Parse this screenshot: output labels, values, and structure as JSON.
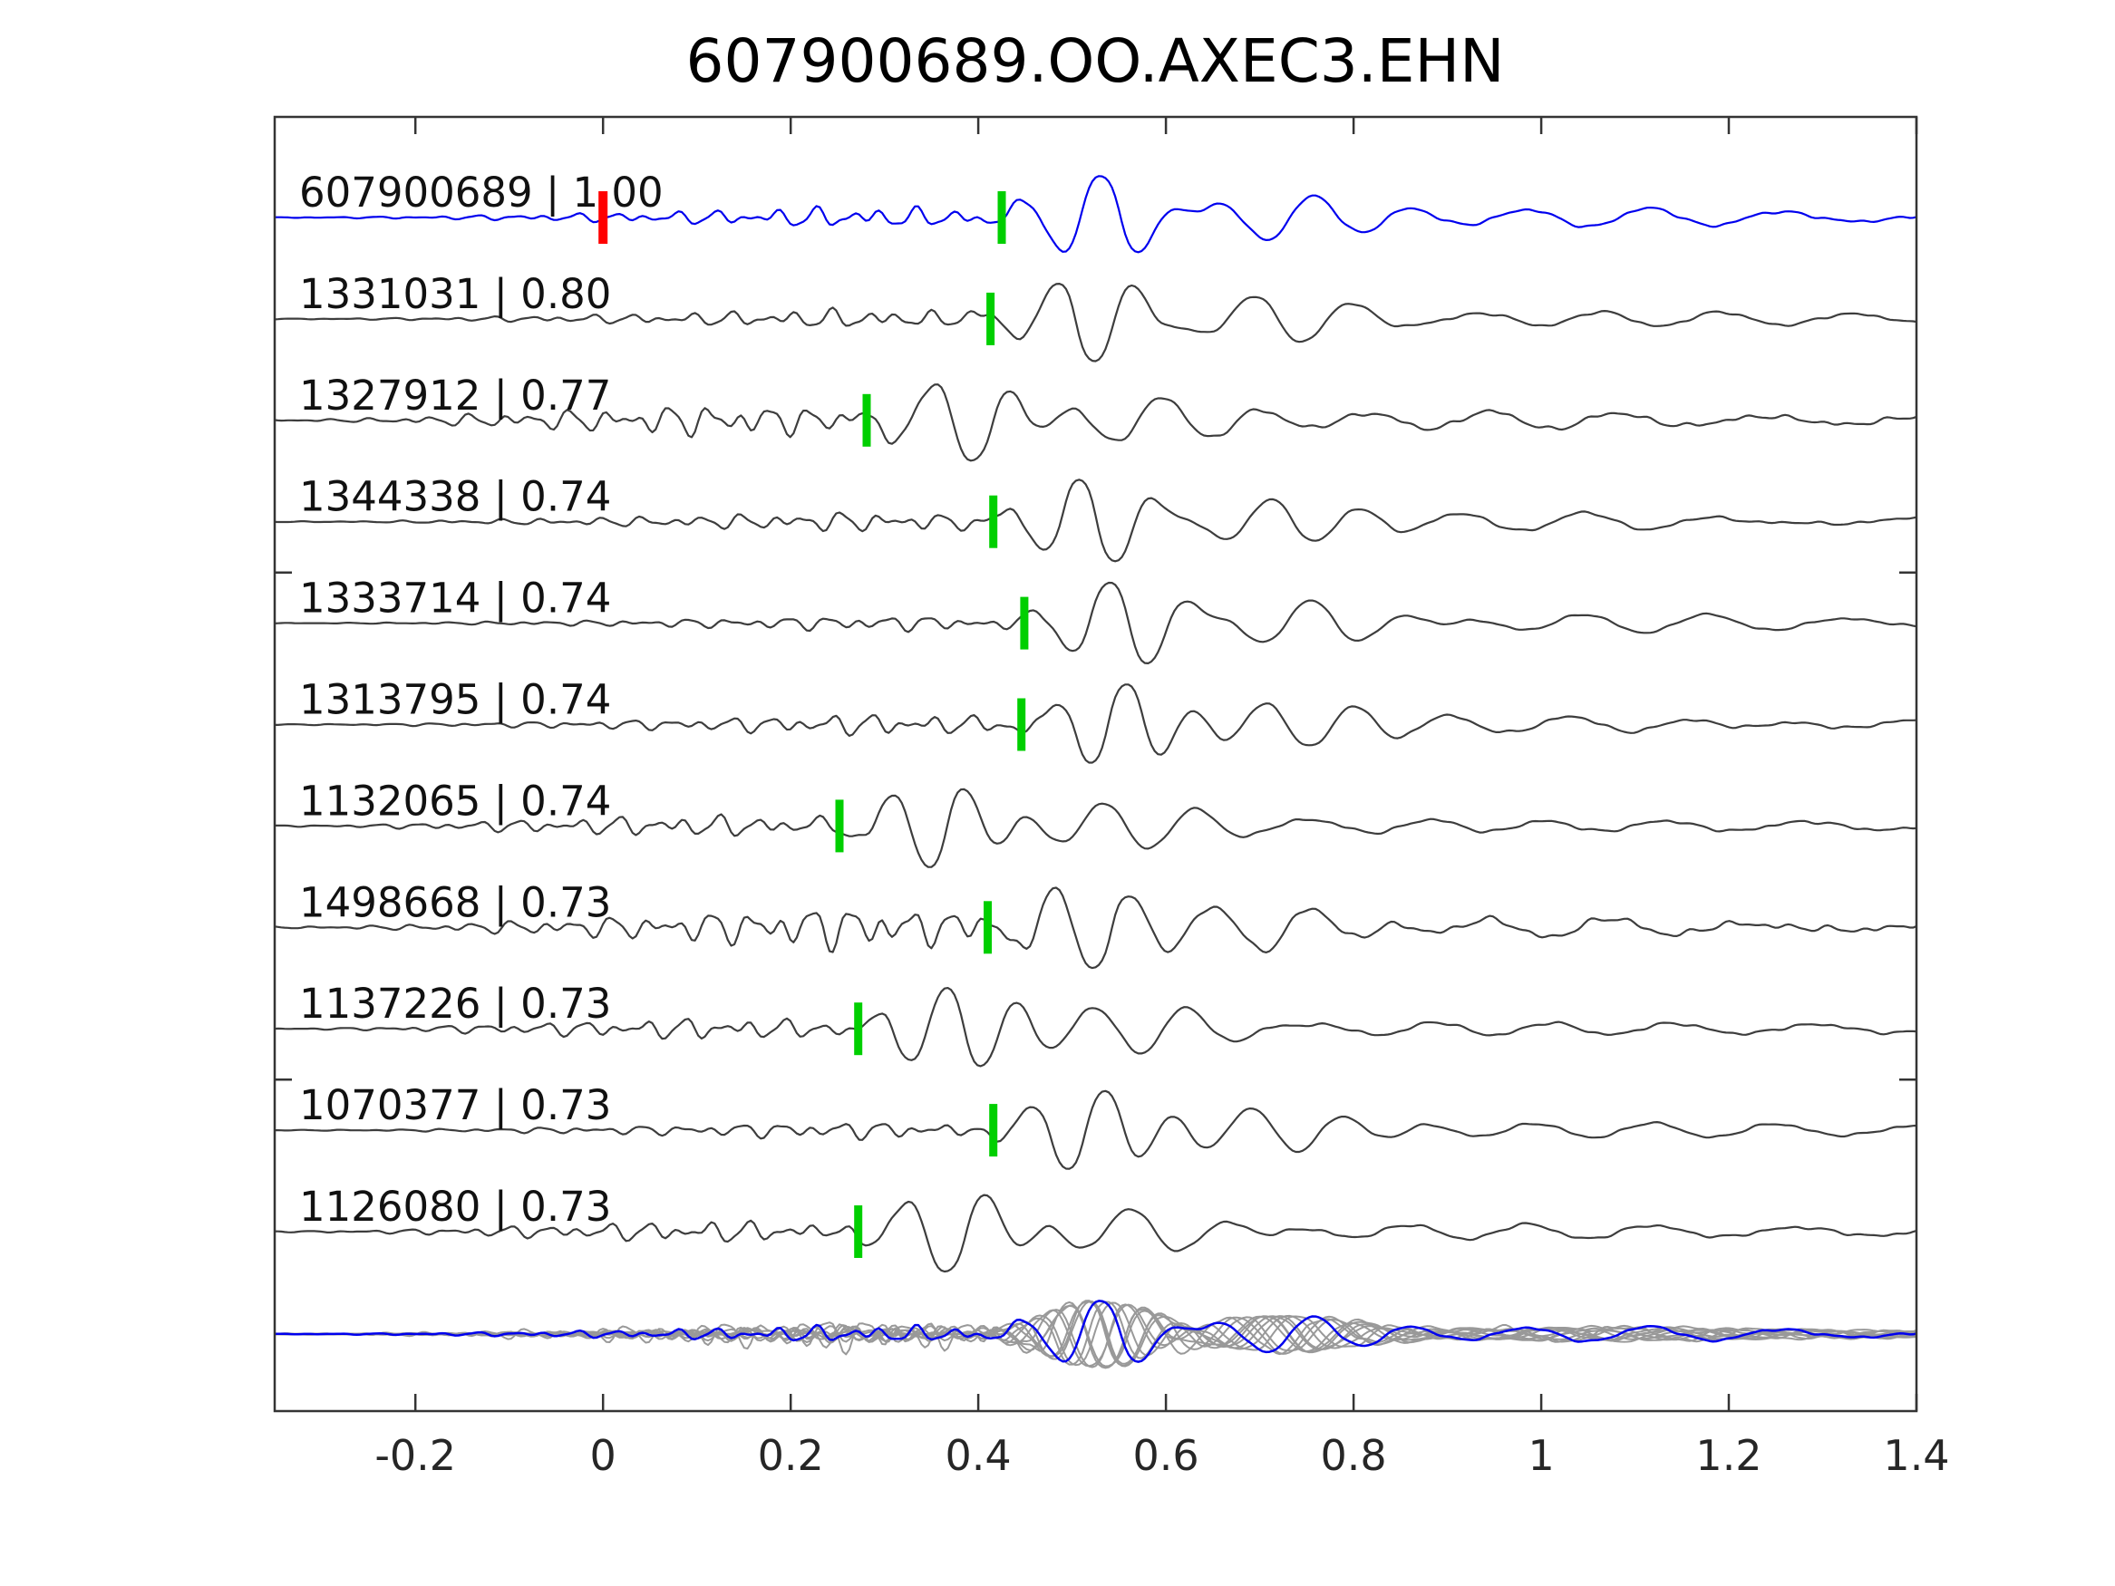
{
  "chart_data": {
    "type": "line",
    "title": "607900689.OO.AXEC3.EHN",
    "x_axis": {
      "tick_labels": [
        "-0.2",
        "0",
        "0.2",
        "0.4",
        "0.6",
        "0.8",
        "1",
        "1.2",
        "1.4"
      ],
      "tick_values": [
        -0.2,
        0,
        0.2,
        0.4,
        0.6,
        0.8,
        1.0,
        1.2,
        1.4
      ],
      "xlim": [
        -0.35,
        1.4
      ]
    },
    "traces": [
      {
        "label": "607900689 | 1.00",
        "id": "607900689",
        "correlation": 1.0,
        "pick_time": 0.425,
        "is_reference": true,
        "noise_level": 1.0
      },
      {
        "label": "1331031 | 0.80",
        "id": "1331031",
        "correlation": 0.8,
        "pick_time": 0.413,
        "is_reference": false,
        "noise_level": 0.9
      },
      {
        "label": "1327912 | 0.77",
        "id": "1327912",
        "correlation": 0.77,
        "pick_time": 0.281,
        "is_reference": false,
        "noise_level": 1.5
      },
      {
        "label": "1344338 | 0.74",
        "id": "1344338",
        "correlation": 0.74,
        "pick_time": 0.416,
        "is_reference": false,
        "noise_level": 0.9
      },
      {
        "label": "1333714 | 0.74",
        "id": "1333714",
        "correlation": 0.74,
        "pick_time": 0.449,
        "is_reference": false,
        "noise_level": 0.7
      },
      {
        "label": "1313795 | 0.74",
        "id": "1313795",
        "correlation": 0.74,
        "pick_time": 0.446,
        "is_reference": false,
        "noise_level": 1.0
      },
      {
        "label": "1132065 | 0.74",
        "id": "1132065",
        "correlation": 0.74,
        "pick_time": 0.252,
        "is_reference": false,
        "noise_level": 1.0
      },
      {
        "label": "1498668 | 0.73",
        "id": "1498668",
        "correlation": 0.73,
        "pick_time": 0.41,
        "is_reference": false,
        "noise_level": 2.1
      },
      {
        "label": "1137226 | 0.73",
        "id": "1137226",
        "correlation": 0.73,
        "pick_time": 0.272,
        "is_reference": false,
        "noise_level": 1.0
      },
      {
        "label": "1070377 | 0.73",
        "id": "1070377",
        "correlation": 0.73,
        "pick_time": 0.416,
        "is_reference": false,
        "noise_level": 0.8
      },
      {
        "label": "1126080 | 0.73",
        "id": "1126080",
        "correlation": 0.73,
        "pick_time": 0.272,
        "is_reference": false,
        "noise_level": 1.0
      }
    ],
    "overlay_row": {
      "description": "all traces overlaid and aligned on picks",
      "has_pick_marker": false
    },
    "reference_zero_marker": {
      "trace_id": "607900689",
      "x": 0.0
    },
    "colors": {
      "reference": "#0000ee",
      "trace": "#3d3d3d",
      "overlay_trace": "#999999",
      "pick_marker": "#00cf00",
      "zero_marker": "#ff0000",
      "axis": "#343434"
    },
    "layout": {
      "grid": false,
      "tick_direction": "in",
      "legend": "none",
      "unlabeled_y_ticks": 2
    }
  }
}
